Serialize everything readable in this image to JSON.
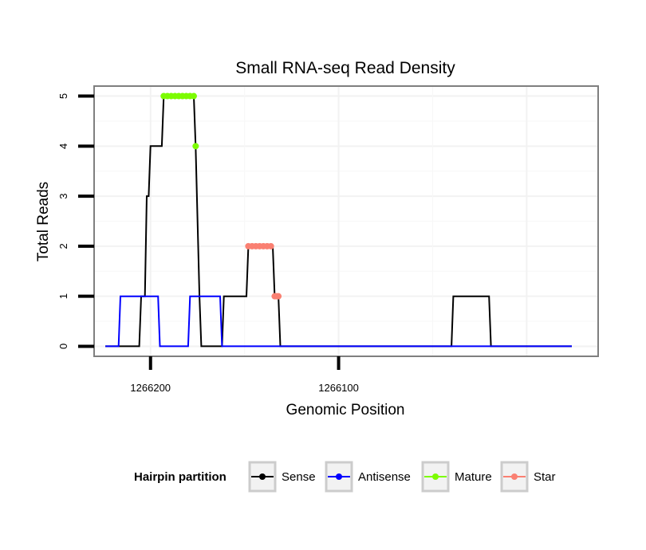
{
  "chart_data": {
    "type": "line",
    "title": "Small RNA-seq Read Density",
    "xlabel": "Genomic Position",
    "ylabel": "Total Reads",
    "x_reversed": true,
    "xlim": [
      1266230,
      1265962
    ],
    "ylim": [
      -0.2,
      5.2
    ],
    "x_ticks": [
      1266200,
      1266100
    ],
    "x_tick_labels": [
      "1266200",
      "1266100"
    ],
    "y_ticks": [
      0,
      1,
      2,
      3,
      4,
      5
    ],
    "y_tick_labels": [
      "0",
      "1",
      "2",
      "3",
      "4",
      "5"
    ],
    "grid": true,
    "legend": {
      "title": "Hairpin partition",
      "position": "bottom",
      "entries": [
        "Sense",
        "Antisense",
        "Mature",
        "Star"
      ]
    },
    "series": [
      {
        "name": "Sense",
        "color": "#000000",
        "kind": "line",
        "points": [
          [
            1266224,
            0
          ],
          [
            1266206,
            0
          ],
          [
            1266205,
            1
          ],
          [
            1266203,
            1
          ],
          [
            1266202,
            3
          ],
          [
            1266201,
            3
          ],
          [
            1266200,
            4
          ],
          [
            1266194,
            4
          ],
          [
            1266193,
            5
          ],
          [
            1266177,
            5
          ],
          [
            1266176,
            4
          ],
          [
            1266174,
            1
          ],
          [
            1266173,
            0
          ],
          [
            1266162,
            0
          ],
          [
            1266161,
            1
          ],
          [
            1266149,
            1
          ],
          [
            1266148,
            2
          ],
          [
            1266135,
            2
          ],
          [
            1266134,
            1
          ],
          [
            1266132,
            1
          ],
          [
            1266131,
            0
          ],
          [
            1266040,
            0
          ],
          [
            1266039,
            1
          ],
          [
            1266020,
            1
          ],
          [
            1266019,
            0
          ],
          [
            1265976,
            0
          ]
        ]
      },
      {
        "name": "Antisense",
        "color": "#0000ff",
        "kind": "line",
        "points": [
          [
            1266224,
            0
          ],
          [
            1266217,
            0
          ],
          [
            1266216,
            1
          ],
          [
            1266196,
            1
          ],
          [
            1266195,
            0
          ],
          [
            1266180,
            0
          ],
          [
            1266179,
            1
          ],
          [
            1266163,
            1
          ],
          [
            1266162,
            0
          ],
          [
            1266040,
            0
          ],
          [
            1266039,
            0
          ],
          [
            1266020,
            0
          ],
          [
            1266019,
            0
          ],
          [
            1265976,
            0
          ]
        ]
      },
      {
        "name": "Mature",
        "color": "#7cfc00",
        "kind": "points",
        "points": [
          [
            1266193,
            5
          ],
          [
            1266191,
            5
          ],
          [
            1266189,
            5
          ],
          [
            1266187,
            5
          ],
          [
            1266185,
            5
          ],
          [
            1266183,
            5
          ],
          [
            1266181,
            5
          ],
          [
            1266179,
            5
          ],
          [
            1266177,
            5
          ],
          [
            1266176,
            4
          ]
        ]
      },
      {
        "name": "Star",
        "color": "#fa8072",
        "kind": "points",
        "points": [
          [
            1266148,
            2
          ],
          [
            1266146,
            2
          ],
          [
            1266144,
            2
          ],
          [
            1266142,
            2
          ],
          [
            1266140,
            2
          ],
          [
            1266138,
            2
          ],
          [
            1266136,
            2
          ],
          [
            1266134,
            1
          ],
          [
            1266133,
            1
          ],
          [
            1266132,
            1
          ]
        ]
      }
    ]
  }
}
